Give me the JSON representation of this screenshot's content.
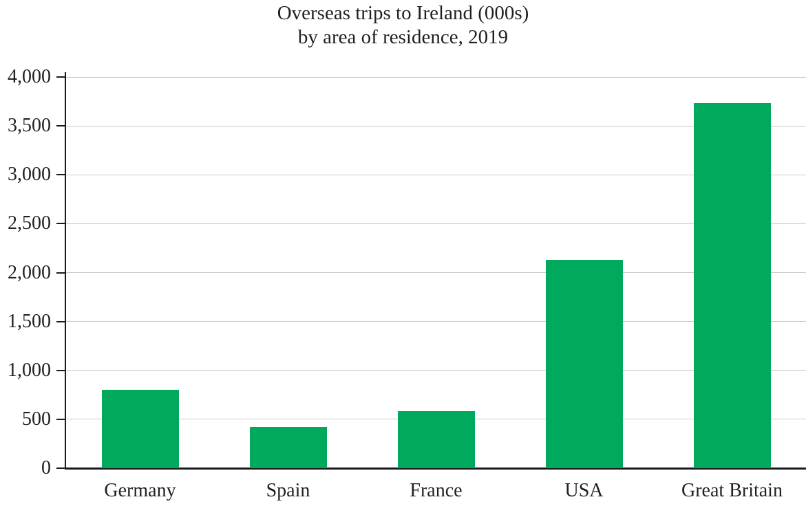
{
  "title": {
    "line1": "Overseas trips to Ireland (000s)",
    "line2": "by area of residence, 2019"
  },
  "chart_data": {
    "type": "bar",
    "title": "Overseas trips to Ireland (000s) by area of residence, 2019",
    "categories": [
      "Germany",
      "Spain",
      "France",
      "USA",
      "Great Britain"
    ],
    "values": [
      800,
      420,
      580,
      2130,
      3730
    ],
    "xlabel": "",
    "ylabel": "",
    "ylim": [
      0,
      4000
    ],
    "ytick_step": 500,
    "ytick_labels": [
      "0",
      "500",
      "1,000",
      "1,500",
      "2,000",
      "2,500",
      "3,000",
      "3,500",
      "4,000"
    ],
    "grid": true,
    "legend": "none",
    "bar_color": "#00a95c",
    "grid_color": "#c8c8c8",
    "axis_color": "#1a1a1a",
    "text_color": "#231f20"
  }
}
